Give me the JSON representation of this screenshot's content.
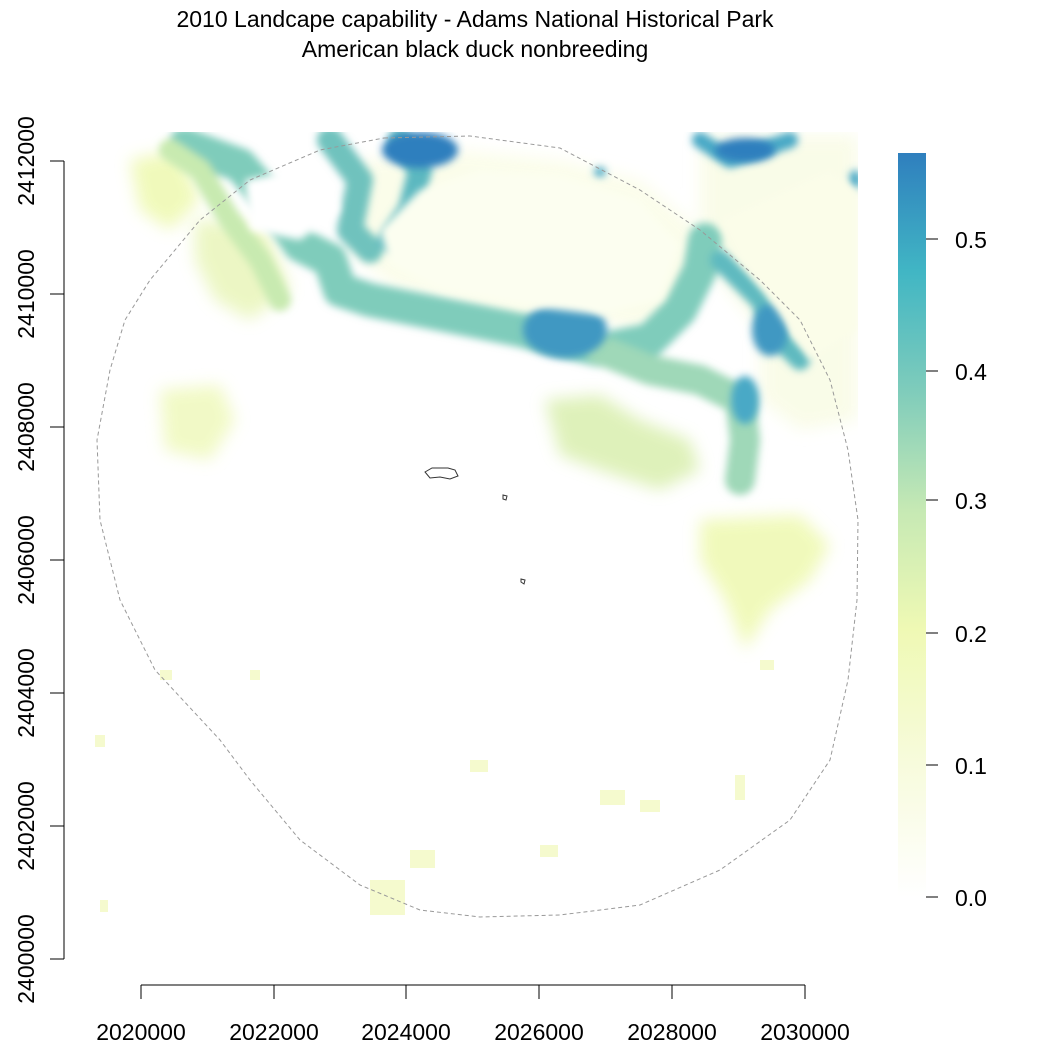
{
  "title": "2010 Landcape capability - Adams National Historical Park",
  "subtitle": "American black duck nonbreeding",
  "colors": {
    "scale": [
      "#ffffff",
      "#f7fbdc",
      "#eff9b4",
      "#c6e9b4",
      "#7fccbb",
      "#41b6c4",
      "#2f7fbe"
    ],
    "boundary": "#999999",
    "park_outline": "#333333"
  },
  "chart_data": {
    "type": "heatmap",
    "title": "2010 Landcape capability - Adams National Historical Park",
    "subtitle": "American black duck nonbreeding",
    "x_ticks": [
      "2020000",
      "2022000",
      "2024000",
      "2026000",
      "2028000",
      "2030000"
    ],
    "y_ticks": [
      "2400000",
      "2402000",
      "2404000",
      "2406000",
      "2408000",
      "2410000",
      "2412000"
    ],
    "xlim": [
      2019800,
      2030800
    ],
    "ylim": [
      2400000,
      2412450
    ],
    "legend": {
      "placement": "right",
      "ticks": [
        "0.0",
        "0.1",
        "0.2",
        "0.3",
        "0.4",
        "0.5"
      ],
      "range": [
        0.0,
        0.56
      ]
    },
    "grid": false,
    "notes_visible": []
  }
}
